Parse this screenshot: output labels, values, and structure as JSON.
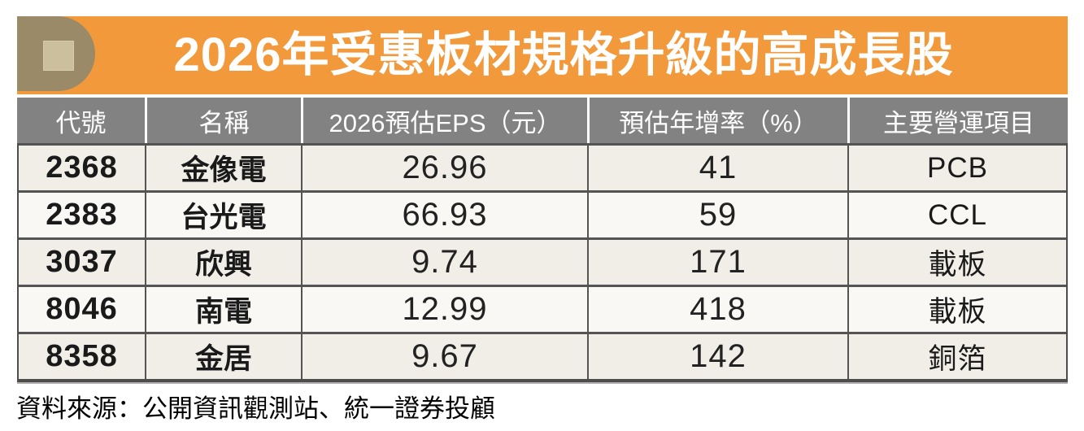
{
  "chart_data": {
    "type": "table",
    "title": "2026年受惠板材規格升級的高成長股",
    "columns": [
      "代號",
      "名稱",
      "2026預估EPS（元）",
      "預估年增率（%）",
      "主要營運項目"
    ],
    "rows": [
      [
        "2368",
        "金像電",
        "26.96",
        "41",
        "PCB"
      ],
      [
        "2383",
        "台光電",
        "66.93",
        "59",
        "CCL"
      ],
      [
        "3037",
        "欣興",
        "9.74",
        "171",
        "載板"
      ],
      [
        "8046",
        "南電",
        "12.99",
        "418",
        "載板"
      ],
      [
        "8358",
        "金居",
        "9.67",
        "142",
        "銅箔"
      ]
    ]
  },
  "footer": {
    "source_label": "資料來源：公開資訊觀測站、統一證券投顧"
  },
  "colors": {
    "banner_orange": "#F2993B",
    "badge_tan": "#9A8A68",
    "badge_square": "#CBBF9E",
    "header_gray": "#828282",
    "row_beige": "#F1EEE7",
    "row_white": "#FAF8F4",
    "border_dark": "#4D4D4D",
    "title_text": "#FFFFFF",
    "body_text": "#1A1A1A"
  }
}
